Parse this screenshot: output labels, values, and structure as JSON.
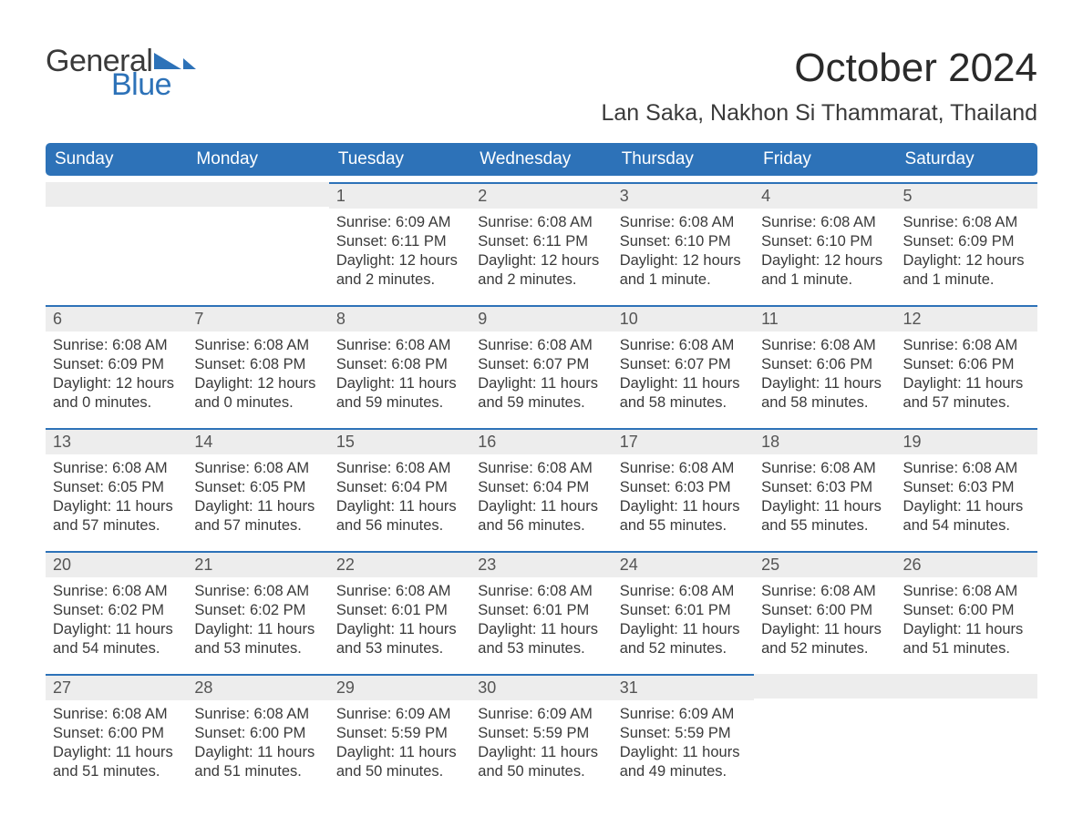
{
  "logo": {
    "text1": "General",
    "text2": "Blue",
    "flag_color": "#2d72b8"
  },
  "title": "October 2024",
  "location": "Lan Saka, Nakhon Si Thammarat, Thailand",
  "colors": {
    "header_bg": "#2d72b8",
    "header_text": "#ffffff",
    "daynum_bg": "#ededed",
    "daynum_border": "#2d72b8",
    "body_text": "#3a3a3a",
    "background": "#ffffff"
  },
  "type": "calendar-month",
  "weekdays": [
    "Sunday",
    "Monday",
    "Tuesday",
    "Wednesday",
    "Thursday",
    "Friday",
    "Saturday"
  ],
  "weeks": [
    [
      {
        "day": "",
        "sunrise": "",
        "sunset": "",
        "daylight": ""
      },
      {
        "day": "",
        "sunrise": "",
        "sunset": "",
        "daylight": ""
      },
      {
        "day": "1",
        "sunrise": "Sunrise: 6:09 AM",
        "sunset": "Sunset: 6:11 PM",
        "daylight": "Daylight: 12 hours and 2 minutes."
      },
      {
        "day": "2",
        "sunrise": "Sunrise: 6:08 AM",
        "sunset": "Sunset: 6:11 PM",
        "daylight": "Daylight: 12 hours and 2 minutes."
      },
      {
        "day": "3",
        "sunrise": "Sunrise: 6:08 AM",
        "sunset": "Sunset: 6:10 PM",
        "daylight": "Daylight: 12 hours and 1 minute."
      },
      {
        "day": "4",
        "sunrise": "Sunrise: 6:08 AM",
        "sunset": "Sunset: 6:10 PM",
        "daylight": "Daylight: 12 hours and 1 minute."
      },
      {
        "day": "5",
        "sunrise": "Sunrise: 6:08 AM",
        "sunset": "Sunset: 6:09 PM",
        "daylight": "Daylight: 12 hours and 1 minute."
      }
    ],
    [
      {
        "day": "6",
        "sunrise": "Sunrise: 6:08 AM",
        "sunset": "Sunset: 6:09 PM",
        "daylight": "Daylight: 12 hours and 0 minutes."
      },
      {
        "day": "7",
        "sunrise": "Sunrise: 6:08 AM",
        "sunset": "Sunset: 6:08 PM",
        "daylight": "Daylight: 12 hours and 0 minutes."
      },
      {
        "day": "8",
        "sunrise": "Sunrise: 6:08 AM",
        "sunset": "Sunset: 6:08 PM",
        "daylight": "Daylight: 11 hours and 59 minutes."
      },
      {
        "day": "9",
        "sunrise": "Sunrise: 6:08 AM",
        "sunset": "Sunset: 6:07 PM",
        "daylight": "Daylight: 11 hours and 59 minutes."
      },
      {
        "day": "10",
        "sunrise": "Sunrise: 6:08 AM",
        "sunset": "Sunset: 6:07 PM",
        "daylight": "Daylight: 11 hours and 58 minutes."
      },
      {
        "day": "11",
        "sunrise": "Sunrise: 6:08 AM",
        "sunset": "Sunset: 6:06 PM",
        "daylight": "Daylight: 11 hours and 58 minutes."
      },
      {
        "day": "12",
        "sunrise": "Sunrise: 6:08 AM",
        "sunset": "Sunset: 6:06 PM",
        "daylight": "Daylight: 11 hours and 57 minutes."
      }
    ],
    [
      {
        "day": "13",
        "sunrise": "Sunrise: 6:08 AM",
        "sunset": "Sunset: 6:05 PM",
        "daylight": "Daylight: 11 hours and 57 minutes."
      },
      {
        "day": "14",
        "sunrise": "Sunrise: 6:08 AM",
        "sunset": "Sunset: 6:05 PM",
        "daylight": "Daylight: 11 hours and 57 minutes."
      },
      {
        "day": "15",
        "sunrise": "Sunrise: 6:08 AM",
        "sunset": "Sunset: 6:04 PM",
        "daylight": "Daylight: 11 hours and 56 minutes."
      },
      {
        "day": "16",
        "sunrise": "Sunrise: 6:08 AM",
        "sunset": "Sunset: 6:04 PM",
        "daylight": "Daylight: 11 hours and 56 minutes."
      },
      {
        "day": "17",
        "sunrise": "Sunrise: 6:08 AM",
        "sunset": "Sunset: 6:03 PM",
        "daylight": "Daylight: 11 hours and 55 minutes."
      },
      {
        "day": "18",
        "sunrise": "Sunrise: 6:08 AM",
        "sunset": "Sunset: 6:03 PM",
        "daylight": "Daylight: 11 hours and 55 minutes."
      },
      {
        "day": "19",
        "sunrise": "Sunrise: 6:08 AM",
        "sunset": "Sunset: 6:03 PM",
        "daylight": "Daylight: 11 hours and 54 minutes."
      }
    ],
    [
      {
        "day": "20",
        "sunrise": "Sunrise: 6:08 AM",
        "sunset": "Sunset: 6:02 PM",
        "daylight": "Daylight: 11 hours and 54 minutes."
      },
      {
        "day": "21",
        "sunrise": "Sunrise: 6:08 AM",
        "sunset": "Sunset: 6:02 PM",
        "daylight": "Daylight: 11 hours and 53 minutes."
      },
      {
        "day": "22",
        "sunrise": "Sunrise: 6:08 AM",
        "sunset": "Sunset: 6:01 PM",
        "daylight": "Daylight: 11 hours and 53 minutes."
      },
      {
        "day": "23",
        "sunrise": "Sunrise: 6:08 AM",
        "sunset": "Sunset: 6:01 PM",
        "daylight": "Daylight: 11 hours and 53 minutes."
      },
      {
        "day": "24",
        "sunrise": "Sunrise: 6:08 AM",
        "sunset": "Sunset: 6:01 PM",
        "daylight": "Daylight: 11 hours and 52 minutes."
      },
      {
        "day": "25",
        "sunrise": "Sunrise: 6:08 AM",
        "sunset": "Sunset: 6:00 PM",
        "daylight": "Daylight: 11 hours and 52 minutes."
      },
      {
        "day": "26",
        "sunrise": "Sunrise: 6:08 AM",
        "sunset": "Sunset: 6:00 PM",
        "daylight": "Daylight: 11 hours and 51 minutes."
      }
    ],
    [
      {
        "day": "27",
        "sunrise": "Sunrise: 6:08 AM",
        "sunset": "Sunset: 6:00 PM",
        "daylight": "Daylight: 11 hours and 51 minutes."
      },
      {
        "day": "28",
        "sunrise": "Sunrise: 6:08 AM",
        "sunset": "Sunset: 6:00 PM",
        "daylight": "Daylight: 11 hours and 51 minutes."
      },
      {
        "day": "29",
        "sunrise": "Sunrise: 6:09 AM",
        "sunset": "Sunset: 5:59 PM",
        "daylight": "Daylight: 11 hours and 50 minutes."
      },
      {
        "day": "30",
        "sunrise": "Sunrise: 6:09 AM",
        "sunset": "Sunset: 5:59 PM",
        "daylight": "Daylight: 11 hours and 50 minutes."
      },
      {
        "day": "31",
        "sunrise": "Sunrise: 6:09 AM",
        "sunset": "Sunset: 5:59 PM",
        "daylight": "Daylight: 11 hours and 49 minutes."
      },
      {
        "day": "",
        "sunrise": "",
        "sunset": "",
        "daylight": ""
      },
      {
        "day": "",
        "sunrise": "",
        "sunset": "",
        "daylight": ""
      }
    ]
  ]
}
